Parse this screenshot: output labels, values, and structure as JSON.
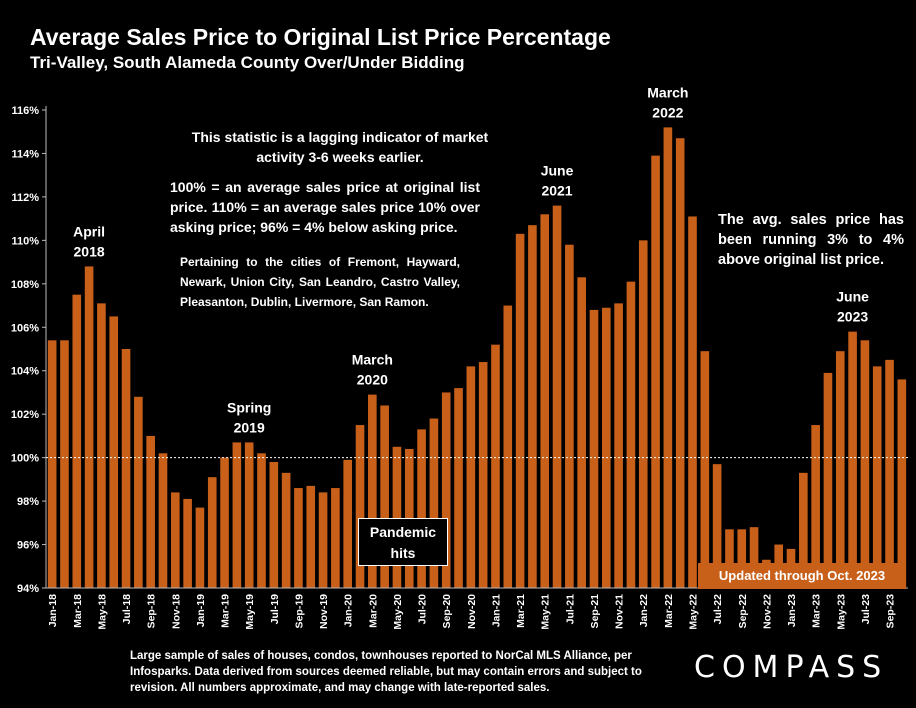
{
  "chart_data": {
    "type": "bar",
    "title": "Average Sales Price to Original List Price Percentage",
    "subtitle": "Tri-Valley, South Alameda County Over/Under Bidding",
    "ylim": [
      94,
      116
    ],
    "yticks": [
      "94%",
      "96%",
      "98%",
      "100%",
      "102%",
      "104%",
      "106%",
      "108%",
      "110%",
      "112%",
      "114%",
      "116%"
    ],
    "ytick_values": [
      94,
      96,
      98,
      100,
      102,
      104,
      106,
      108,
      110,
      112,
      114,
      116
    ],
    "reference_line": 100,
    "x_tick_labels": [
      "Jan-18",
      "Mar-18",
      "May-18",
      "Jul-18",
      "Sep-18",
      "Nov-18",
      "Jan-19",
      "Mar-19",
      "May-19",
      "Jul-19",
      "Sep-19",
      "Nov-19",
      "Jan-20",
      "Mar-20",
      "May-20",
      "Jul-20",
      "Sep-20",
      "Nov-20",
      "Jan-21",
      "Mar-21",
      "May-21",
      "Jul-21",
      "Sep-21",
      "Nov-21",
      "Jan-22",
      "Mar-22",
      "May-22",
      "Jul-22",
      "Sep-22",
      "Nov-22",
      "Jan-23",
      "Mar-23",
      "May-23",
      "Jul-23",
      "Sep-23"
    ],
    "values": [
      105.4,
      105.4,
      107.5,
      108.8,
      107.1,
      106.5,
      105.0,
      102.8,
      101.0,
      100.2,
      98.4,
      98.1,
      97.7,
      99.1,
      100.0,
      100.7,
      100.7,
      100.2,
      99.8,
      99.3,
      98.6,
      98.7,
      98.4,
      98.6,
      99.9,
      101.5,
      102.9,
      102.4,
      100.5,
      100.4,
      101.3,
      101.8,
      103.0,
      103.2,
      104.2,
      104.4,
      105.2,
      107.0,
      110.3,
      110.7,
      111.2,
      111.6,
      109.8,
      108.3,
      106.8,
      106.9,
      107.1,
      108.1,
      110.0,
      113.9,
      115.2,
      114.7,
      111.1,
      104.9,
      99.7,
      96.7,
      96.7,
      96.8,
      95.3,
      96.0,
      95.8,
      99.3,
      101.5,
      103.9,
      104.9,
      105.8,
      105.4,
      104.2,
      104.5,
      103.6
    ],
    "bar_color": "#c8601a",
    "grid": false,
    "annotations": [
      {
        "lines": [
          "April",
          "2018"
        ],
        "index": 3
      },
      {
        "lines": [
          "Spring",
          "2019"
        ],
        "index": 16
      },
      {
        "lines": [
          "March",
          "2020"
        ],
        "index": 26
      },
      {
        "lines": [
          "June",
          "2021"
        ],
        "index": 41
      },
      {
        "lines": [
          "March",
          "2022"
        ],
        "index": 50
      },
      {
        "lines": [
          "June",
          "2023"
        ],
        "index": 65
      }
    ]
  },
  "notes": {
    "lagging": "This statistic is a lagging indicator of market activity 3-6 weeks earlier.",
    "definition": "100% = an average sales price at original list price. 110% = an average sales price 10% over asking price; 96% = 4% below asking price.",
    "cities": "Pertaining to the cities of Fremont, Hayward, Newark, Union City, San Leandro, Castro Valley, Pleasanton, Dublin, Livermore, San Ramon.",
    "running": "The avg. sales price has been running 3% to 4% above original list price."
  },
  "pandemic_label": "Pandemic hits",
  "updated_label": "Updated through Oct. 2023",
  "footer": "Large sample of sales of houses, condos, townhouses reported to NorCal MLS Alliance, per Infosparks. Data derived from sources deemed reliable, but may contain errors and subject to revision. All numbers approximate, and may change with late-reported sales.",
  "logo": "COMPASS"
}
